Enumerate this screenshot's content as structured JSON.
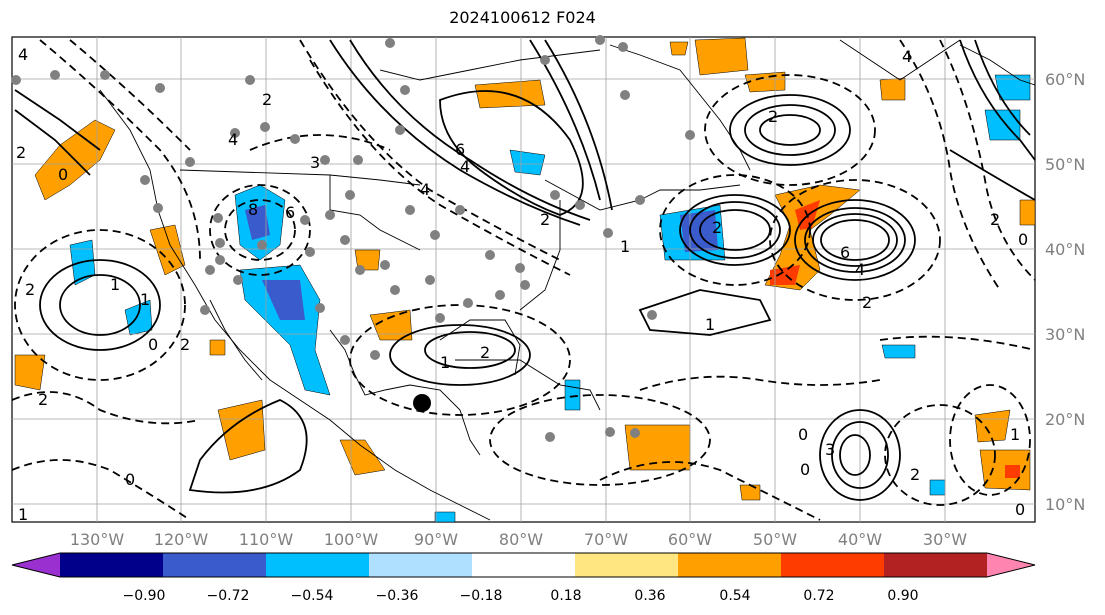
{
  "title": "2024100612 F024",
  "map": {
    "lon_ticks": [
      "130°W",
      "120°W",
      "110°W",
      "100°W",
      "90°W",
      "80°W",
      "70°W",
      "60°W",
      "50°W",
      "40°W",
      "30°W"
    ],
    "lat_ticks": [
      "60°N",
      "50°N",
      "40°N",
      "30°N",
      "20°N",
      "10°N"
    ],
    "contour_labels": [
      "4",
      "2",
      "0",
      "2",
      "1",
      "4",
      "3",
      "2",
      "8",
      "6",
      "2",
      "0",
      "2",
      "1",
      "0",
      "2",
      "1",
      "2",
      "1",
      "2",
      "1",
      "6",
      "4",
      "2",
      "4",
      "2",
      "6",
      "4",
      "0",
      "3",
      "0",
      "2",
      "2",
      "4",
      "0",
      "1",
      "1",
      "0"
    ],
    "marker": "storm-center"
  },
  "colorbar": {
    "ticks": [
      "−0.90",
      "−0.72",
      "−0.54",
      "−0.36",
      "−0.18",
      "0.18",
      "0.36",
      "0.54",
      "0.72",
      "0.90"
    ],
    "colors": [
      "#9b30d0",
      "#00008b",
      "#3a5bcc",
      "#00bfff",
      "#b0e0ff",
      "#ffffff",
      "#ffe680",
      "#ffa000",
      "#ff3c00",
      "#b22222",
      "#ff85b0"
    ],
    "extend": "both"
  }
}
